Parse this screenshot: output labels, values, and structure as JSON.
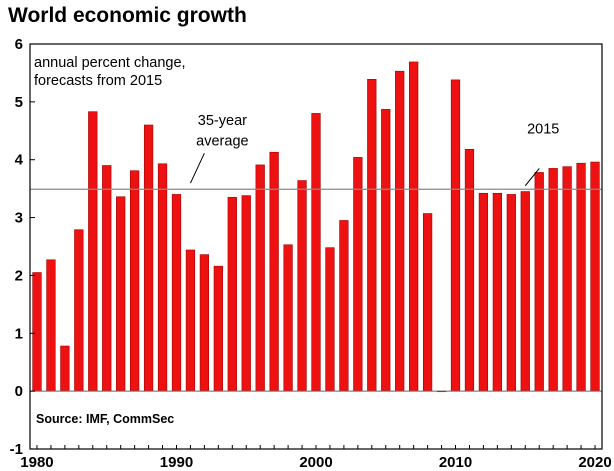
{
  "chart_data": {
    "type": "bar",
    "title": "World economic growth",
    "subtitle": [
      "annual percent change,",
      "forecasts from 2015"
    ],
    "source": "Source: IMF, CommSec",
    "x": [
      1980,
      1981,
      1982,
      1983,
      1984,
      1985,
      1986,
      1987,
      1988,
      1989,
      1990,
      1991,
      1992,
      1993,
      1994,
      1995,
      1996,
      1997,
      1998,
      1999,
      2000,
      2001,
      2002,
      2003,
      2004,
      2005,
      2006,
      2007,
      2008,
      2009,
      2010,
      2011,
      2012,
      2013,
      2014,
      2015,
      2016,
      2017,
      2018,
      2019,
      2020
    ],
    "values": [
      2.05,
      2.27,
      0.78,
      2.79,
      4.83,
      3.9,
      3.36,
      3.81,
      4.6,
      3.93,
      3.4,
      2.44,
      2.36,
      2.16,
      3.35,
      3.38,
      3.91,
      4.13,
      2.53,
      3.64,
      4.8,
      2.48,
      2.95,
      4.04,
      5.39,
      4.87,
      5.53,
      5.69,
      3.07,
      -0.01,
      5.38,
      4.18,
      3.42,
      3.42,
      3.4,
      3.45,
      3.78,
      3.85,
      3.88,
      3.94,
      3.96
    ],
    "ylim": [
      -1,
      6
    ],
    "yticks": [
      "-1",
      "0",
      "1",
      "2",
      "3",
      "4",
      "5",
      "6"
    ],
    "xticks": [
      "1980",
      "1990",
      "2000",
      "2010",
      "2020"
    ],
    "reference_line": {
      "value": 3.49,
      "label": [
        "35-year",
        "average"
      ]
    },
    "forecast_label": "2015",
    "grid": false,
    "colors": {
      "bar": "#ee1111",
      "bar_edge": "#a30000",
      "reference": "#8a8a8a",
      "frame": "#000000"
    }
  }
}
